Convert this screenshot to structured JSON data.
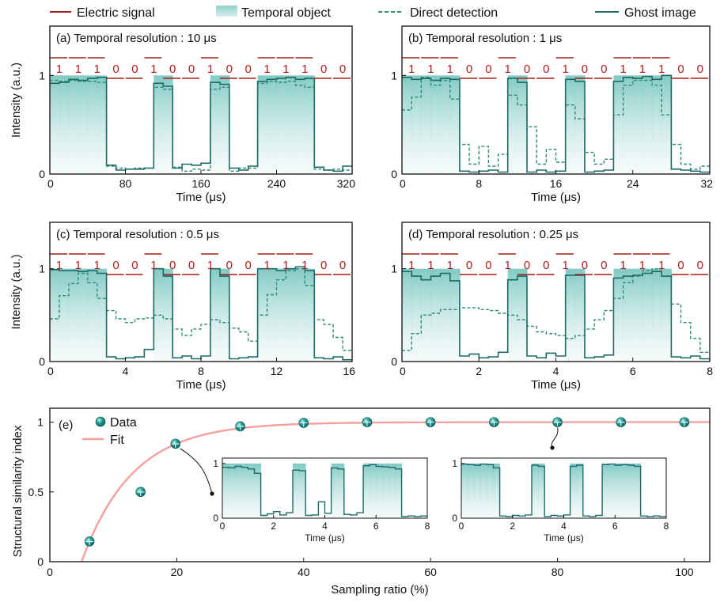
{
  "colors": {
    "signal": "#a61b1b",
    "object_fill": "#8fd0cb",
    "teal": "#1b6b66",
    "direct": "#2e8b78",
    "fit": "#f5a0a0",
    "dot": "#1a8a84"
  },
  "legend": {
    "electric_signal": "Electric signal",
    "temporal_object": "Temporal object",
    "direct_detection": "Direct detection",
    "ghost_image": "Ghost image"
  },
  "chart_data": [
    {
      "id": "a",
      "type": "line",
      "title": "(a) Temporal resolution : 10 μs",
      "xlabel": "Time (μs)",
      "ylabel": "Intensity (a.u.)",
      "xlim": [
        0,
        320
      ],
      "ylim": [
        0,
        1.5
      ],
      "xticks": [
        0,
        80,
        160,
        240,
        320
      ],
      "xtick_labels": [
        "0",
        "80",
        "160",
        "240",
        "320"
      ],
      "yticks": [
        0,
        1
      ],
      "ytick_labels": [
        "0",
        "1"
      ],
      "bits": [
        "1",
        "1",
        "1",
        "0",
        "0",
        "1",
        "0",
        "0",
        "1",
        "0",
        "0",
        "1",
        "1",
        "1",
        "0",
        "0"
      ],
      "object": [
        1,
        1,
        1,
        1,
        1,
        1,
        0,
        0,
        0,
        0,
        0,
        1,
        1,
        0,
        0,
        0,
        0,
        1,
        1,
        0,
        0,
        0,
        1,
        1,
        1,
        1,
        1,
        1,
        0,
        0,
        0,
        0
      ],
      "ghost": [
        0.92,
        0.93,
        0.96,
        0.95,
        0.97,
        0.98,
        0.09,
        0.04,
        0.05,
        0.05,
        0.06,
        0.92,
        0.89,
        0.06,
        0.1,
        0.09,
        0.11,
        0.93,
        0.91,
        0.06,
        0.04,
        0.08,
        0.94,
        0.96,
        0.97,
        0.98,
        0.96,
        0.97,
        0.07,
        0.04,
        0.03,
        0.08
      ],
      "direct": [
        0.95,
        0.94,
        0.95,
        0.94,
        0.94,
        0.93,
        0.08,
        0.06,
        0.05,
        0.06,
        0.06,
        0.88,
        0.86,
        0.07,
        0.03,
        0.05,
        0.04,
        0.86,
        0.88,
        0.03,
        0.06,
        0.06,
        0.92,
        0.94,
        0.93,
        0.94,
        0.9,
        0.88,
        0.05,
        0.04,
        0.05,
        0.04
      ]
    },
    {
      "id": "b",
      "type": "line",
      "title": "(b) Temporal resolution : 1 μs",
      "xlabel": "Time (μs)",
      "ylabel": "",
      "xlim": [
        0,
        32
      ],
      "ylim": [
        0,
        1.5
      ],
      "xticks": [
        0,
        8,
        16,
        24,
        32
      ],
      "xtick_labels": [
        "0",
        "8",
        "16",
        "24",
        "32"
      ],
      "yticks": [
        0,
        1
      ],
      "ytick_labels": [
        "0",
        "1"
      ],
      "bits": [
        "1",
        "1",
        "1",
        "0",
        "0",
        "1",
        "0",
        "0",
        "1",
        "0",
        "0",
        "1",
        "1",
        "1",
        "0",
        "0"
      ],
      "object": [
        1,
        1,
        1,
        1,
        1,
        1,
        0,
        0,
        0,
        0,
        0,
        1,
        1,
        0,
        0,
        0,
        0,
        1,
        1,
        0,
        0,
        0,
        1,
        1,
        1,
        1,
        1,
        1,
        0,
        0,
        0,
        0
      ],
      "ghost": [
        0.98,
        0.96,
        0.97,
        0.95,
        0.97,
        0.96,
        0.03,
        0.02,
        0.03,
        0.04,
        0.02,
        0.97,
        0.93,
        0.02,
        0.04,
        0.02,
        0.03,
        0.96,
        0.94,
        0.02,
        0.03,
        0.04,
        0.94,
        0.98,
        0.97,
        0.99,
        0.96,
        1.0,
        0.05,
        0.04,
        0.03,
        0.02
      ],
      "direct": [
        0.65,
        0.78,
        0.98,
        0.9,
        0.95,
        0.76,
        0.3,
        0.1,
        0.28,
        0.08,
        0.2,
        0.8,
        0.7,
        0.48,
        0.1,
        0.25,
        0.12,
        0.7,
        0.56,
        0.22,
        0.1,
        0.15,
        0.6,
        0.9,
        0.95,
        0.95,
        0.9,
        0.6,
        0.3,
        0.1,
        0.05,
        0.08
      ]
    },
    {
      "id": "c",
      "type": "line",
      "title": "(c) Temporal resolution : 0.5 μs",
      "xlabel": "Time (μs)",
      "ylabel": "Intensity (a.u.)",
      "xlim": [
        0,
        16
      ],
      "ylim": [
        0,
        1.5
      ],
      "xticks": [
        0,
        4,
        8,
        12,
        16
      ],
      "xtick_labels": [
        "0",
        "4",
        "8",
        "12",
        "16"
      ],
      "yticks": [
        0,
        1
      ],
      "ytick_labels": [
        "0",
        "1"
      ],
      "bits": [
        "1",
        "1",
        "1",
        "0",
        "0",
        "1",
        "0",
        "0",
        "1",
        "0",
        "0",
        "1",
        "1",
        "1",
        "0",
        "0"
      ],
      "object": [
        1,
        1,
        1,
        1,
        1,
        1,
        0,
        0,
        0,
        0,
        0,
        1,
        1,
        0,
        0,
        0,
        0,
        1,
        1,
        0,
        0,
        0,
        1,
        1,
        1,
        1,
        1,
        1,
        0,
        0,
        0,
        0
      ],
      "ghost": [
        0.99,
        0.98,
        0.98,
        0.97,
        0.98,
        0.95,
        0.05,
        0.03,
        0.04,
        0.05,
        0.13,
        1.0,
        0.92,
        0.04,
        0.06,
        0.03,
        0.06,
        1.0,
        0.92,
        0.03,
        0.04,
        0.05,
        1.0,
        1.0,
        0.98,
        1.0,
        1.02,
        0.98,
        0.04,
        0.03,
        0.05,
        0.02
      ],
      "direct": [
        0.46,
        0.71,
        0.84,
        0.95,
        0.85,
        0.68,
        0.55,
        0.46,
        0.42,
        0.46,
        0.47,
        0.5,
        0.46,
        0.35,
        0.28,
        0.35,
        0.4,
        0.45,
        0.42,
        0.36,
        0.32,
        0.22,
        0.5,
        0.72,
        0.88,
        0.98,
        1.0,
        0.82,
        0.45,
        0.4,
        0.26,
        0.12
      ]
    },
    {
      "id": "d",
      "type": "line",
      "title": "(d) Temporal resolution : 0.25 μs",
      "xlabel": "Time (μs)",
      "ylabel": "",
      "xlim": [
        0,
        8
      ],
      "ylim": [
        0,
        1.5
      ],
      "xticks": [
        0,
        2,
        4,
        6,
        8
      ],
      "xtick_labels": [
        "0",
        "2",
        "4",
        "6",
        "8"
      ],
      "yticks": [
        0,
        1
      ],
      "ytick_labels": [
        "0",
        "1"
      ],
      "bits": [
        "1",
        "1",
        "1",
        "0",
        "0",
        "1",
        "0",
        "0",
        "1",
        "0",
        "0",
        "1",
        "1",
        "1",
        "0",
        "0"
      ],
      "object": [
        1,
        1,
        1,
        1,
        1,
        1,
        0,
        0,
        0,
        0,
        0,
        1,
        1,
        0,
        0,
        0,
        0,
        1,
        1,
        0,
        0,
        0,
        1,
        1,
        1,
        1,
        1,
        1,
        0,
        0,
        0,
        0
      ],
      "ghost": [
        0.97,
        0.92,
        0.88,
        0.92,
        0.95,
        0.87,
        0.06,
        0.08,
        0.04,
        0.05,
        0.1,
        0.88,
        0.92,
        0.06,
        0.04,
        0.09,
        0.06,
        0.93,
        0.93,
        0.04,
        0.05,
        0.07,
        0.9,
        0.92,
        0.93,
        0.95,
        0.97,
        0.92,
        0.05,
        0.04,
        0.06,
        0.03
      ],
      "direct": [
        0.12,
        0.3,
        0.5,
        0.52,
        0.56,
        0.56,
        0.58,
        0.58,
        0.56,
        0.55,
        0.52,
        0.5,
        0.45,
        0.38,
        0.32,
        0.3,
        0.28,
        0.25,
        0.28,
        0.35,
        0.45,
        0.55,
        0.68,
        0.85,
        0.92,
        0.98,
        1.0,
        0.92,
        0.62,
        0.42,
        0.25,
        0.1
      ]
    },
    {
      "id": "e",
      "type": "scatter",
      "title": "(e)",
      "xlabel": "Sampling ratio (%)",
      "ylabel": "Structural similarity index",
      "xlim": [
        0,
        104
      ],
      "ylim": [
        0,
        1.1
      ],
      "xticks": [
        0,
        20,
        40,
        60,
        80,
        100
      ],
      "xtick_labels": [
        "0",
        "20",
        "40",
        "60",
        "80",
        "100"
      ],
      "yticks": [
        0,
        0.5,
        1
      ],
      "ytick_labels": [
        "0",
        "0.5",
        "1"
      ],
      "legend": {
        "data": "Data",
        "fit": "Fit"
      },
      "x": [
        6.25,
        14.3,
        19.8,
        30,
        40,
        50,
        60,
        70,
        80,
        90,
        100
      ],
      "y": [
        0.145,
        0.5,
        0.845,
        0.97,
        0.995,
        1.0,
        1.0,
        1.0,
        1.0,
        1.0,
        1.0
      ],
      "fit": {
        "model": "1 - exp(-(x - x0)/tau)",
        "x0": 5,
        "tau": 8
      },
      "insets": [
        {
          "id": "inset-20",
          "points_to_x": 19.8,
          "points_to_y": 0.845,
          "xlabel": "Time (μs)",
          "xlim": [
            0,
            8
          ],
          "ylim": [
            0,
            1.1
          ],
          "xticks": [
            0,
            2,
            4,
            6,
            8
          ],
          "xtick_labels": [
            "0",
            "2",
            "4",
            "6",
            "8"
          ],
          "yticks": [
            0,
            1
          ],
          "ytick_labels": [
            "0",
            "1"
          ],
          "object": [
            1,
            1,
            1,
            1,
            1,
            1,
            0,
            0,
            0,
            0,
            0,
            1,
            1,
            0,
            0,
            0,
            0,
            1,
            1,
            0,
            0,
            0,
            1,
            1,
            1,
            1,
            1,
            1,
            0,
            0,
            0,
            0
          ],
          "ghost": [
            0.93,
            0.92,
            0.95,
            0.93,
            0.9,
            0.82,
            0.05,
            0.08,
            0.12,
            0.06,
            0.1,
            0.88,
            0.87,
            0.05,
            0.06,
            0.3,
            0.09,
            0.92,
            0.9,
            0.07,
            0.06,
            0.1,
            0.96,
            0.98,
            0.95,
            0.94,
            0.93,
            0.9,
            0.03,
            0.04,
            0.03,
            0.04
          ]
        },
        {
          "id": "inset-80",
          "points_to_x": 80,
          "points_to_y": 1.0,
          "xlabel": "Time (μs)",
          "xlim": [
            0,
            8
          ],
          "ylim": [
            0,
            1.1
          ],
          "xticks": [
            0,
            2,
            4,
            6,
            8
          ],
          "xtick_labels": [
            "0",
            "2",
            "4",
            "6",
            "8"
          ],
          "yticks": [
            0,
            1
          ],
          "ytick_labels": [
            "0",
            "1"
          ],
          "object": [
            1,
            1,
            1,
            1,
            1,
            1,
            0,
            0,
            0,
            0,
            0,
            1,
            1,
            0,
            0,
            0,
            0,
            1,
            1,
            0,
            0,
            0,
            1,
            1,
            1,
            1,
            1,
            1,
            0,
            0,
            0,
            0
          ],
          "ghost": [
            0.99,
            0.98,
            0.97,
            0.99,
            0.98,
            0.92,
            0.04,
            0.03,
            0.05,
            0.04,
            0.06,
            0.97,
            0.95,
            0.03,
            0.05,
            0.04,
            0.06,
            0.95,
            0.97,
            0.04,
            0.03,
            0.05,
            0.98,
            0.99,
            0.97,
            0.98,
            0.97,
            0.95,
            0.04,
            0.03,
            0.04,
            0.03
          ]
        }
      ]
    }
  ]
}
